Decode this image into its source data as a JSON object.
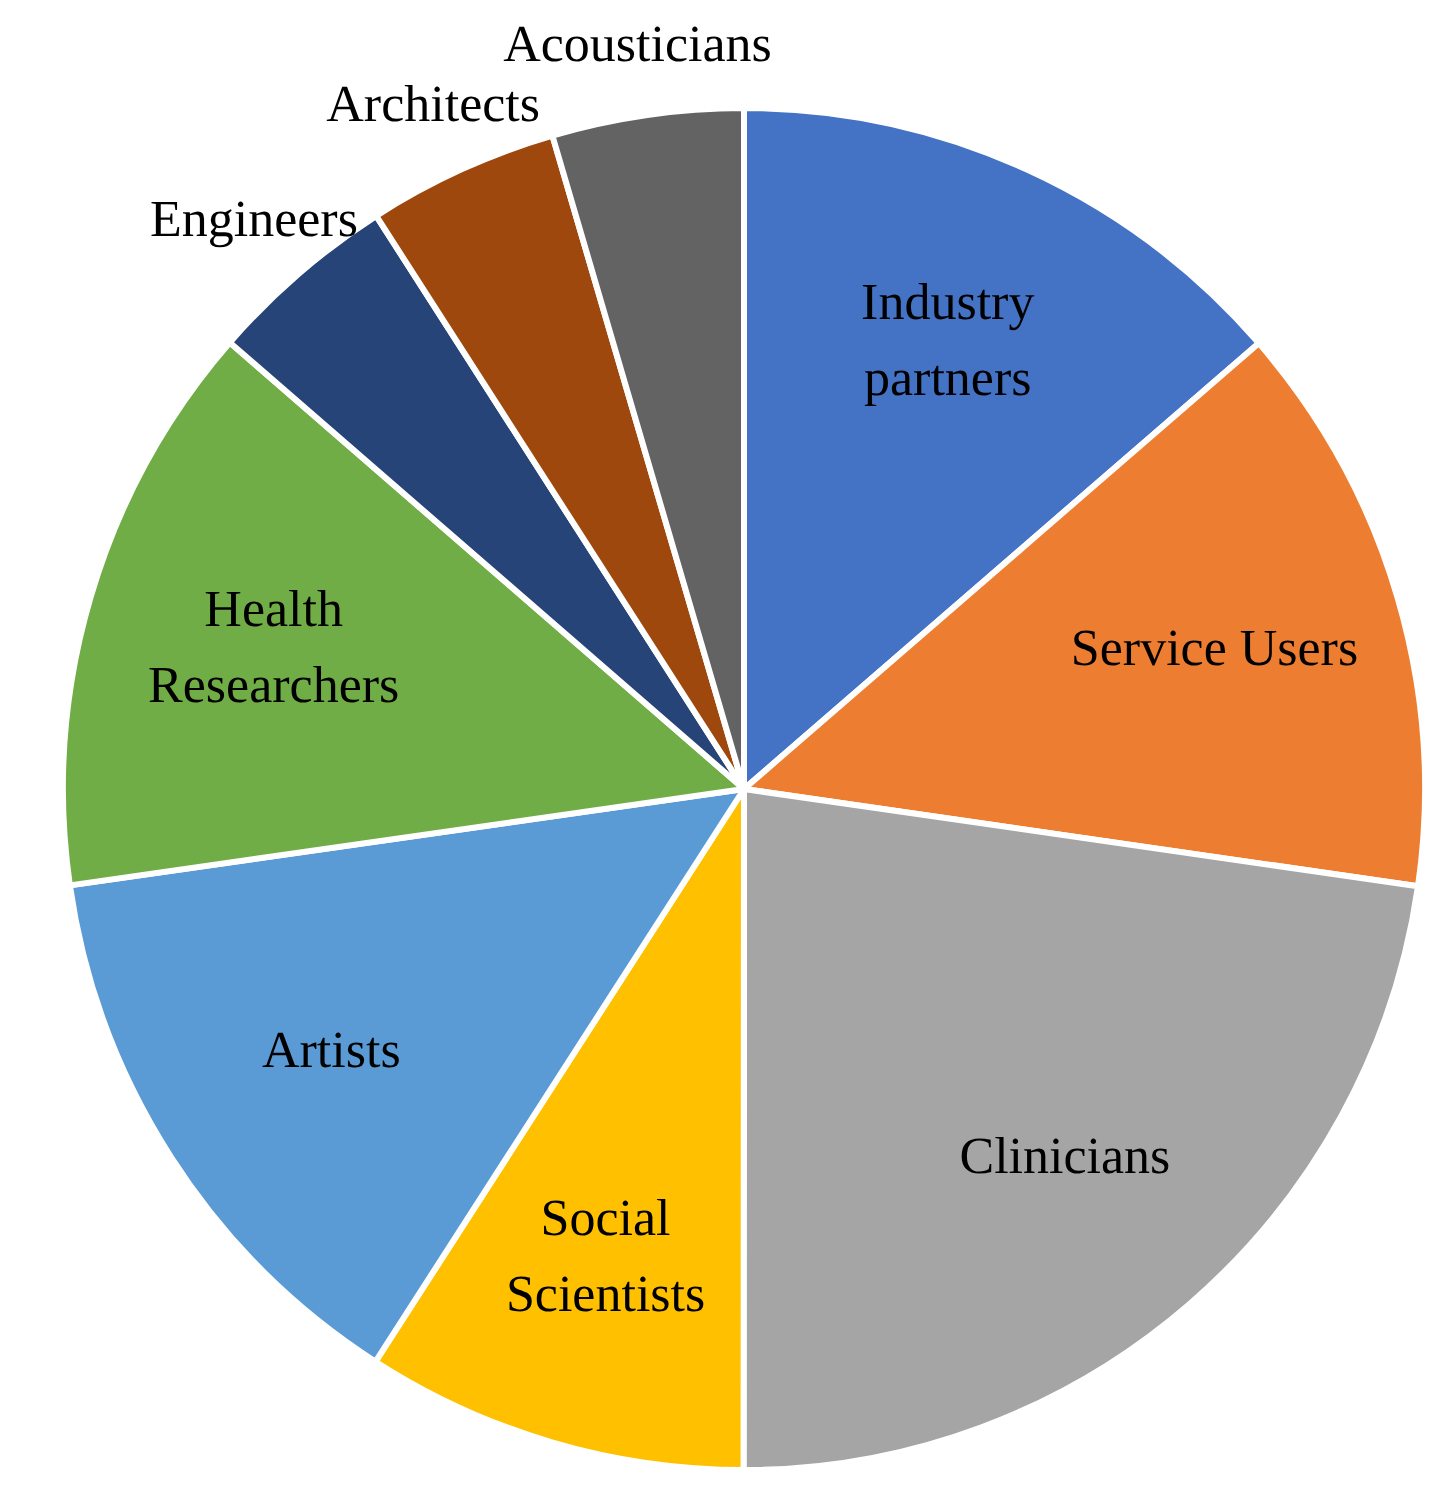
{
  "chart_data": {
    "type": "pie",
    "categories": [
      "Industry partners",
      "Service Users",
      "Clinicians",
      "Social Scientists",
      "Artists",
      "Health Researchers",
      "Engineers",
      "Architects",
      "Acousticians"
    ],
    "values": [
      13.64,
      13.64,
      22.73,
      9.09,
      13.64,
      13.64,
      4.54,
      4.54,
      4.54
    ],
    "colors": [
      "#4472c4",
      "#ed7d31",
      "#a5a5a5",
      "#ffc000",
      "#5b9bd5",
      "#70ad47",
      "#264478",
      "#9e480e",
      "#636363"
    ]
  }
}
